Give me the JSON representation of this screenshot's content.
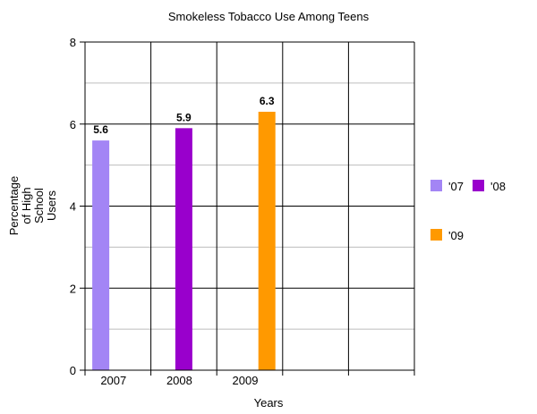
{
  "chart_data": {
    "type": "bar",
    "title": "Smokeless Tobacco Use Among Teens",
    "xlabel": "Years",
    "ylabel_lines": [
      "Percentage",
      "of High",
      "School",
      "Users"
    ],
    "categories": [
      "2007",
      "2008",
      "2009",
      "",
      ""
    ],
    "series": [
      {
        "name": "'07",
        "color": "#a385f5",
        "values": [
          5.6,
          null,
          null,
          null,
          null
        ]
      },
      {
        "name": "'08",
        "color": "#9900cc",
        "values": [
          null,
          5.9,
          null,
          null,
          null
        ]
      },
      {
        "name": "'09",
        "color": "#ff9900",
        "values": [
          null,
          null,
          6.3,
          null,
          null
        ]
      }
    ],
    "data_labels": [
      "5.6",
      "5.9",
      "6.3"
    ],
    "ylim": [
      0,
      8
    ],
    "yticks": [
      0,
      2,
      4,
      6,
      8
    ],
    "grid": true,
    "legend_position": "right"
  }
}
